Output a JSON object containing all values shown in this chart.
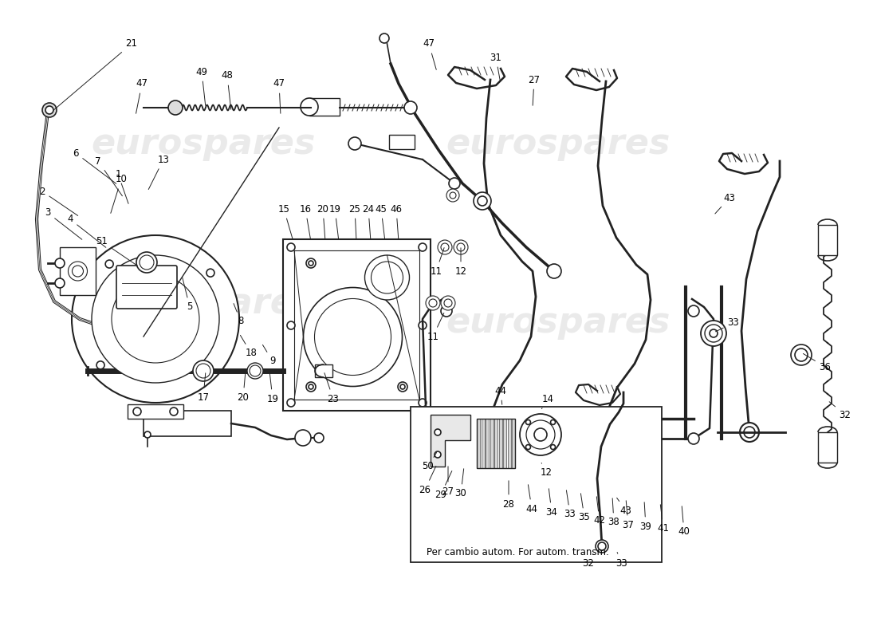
{
  "background_color": "#ffffff",
  "watermark_text": "eurospares",
  "watermark_color": "#cccccc",
  "watermark_fontsize": 32,
  "watermark_alpha": 0.4,
  "line_color": "#222222",
  "line_width": 1.2,
  "annotation_fontsize": 8.5,
  "box_text": "Per cambio autom. For autom. transm."
}
